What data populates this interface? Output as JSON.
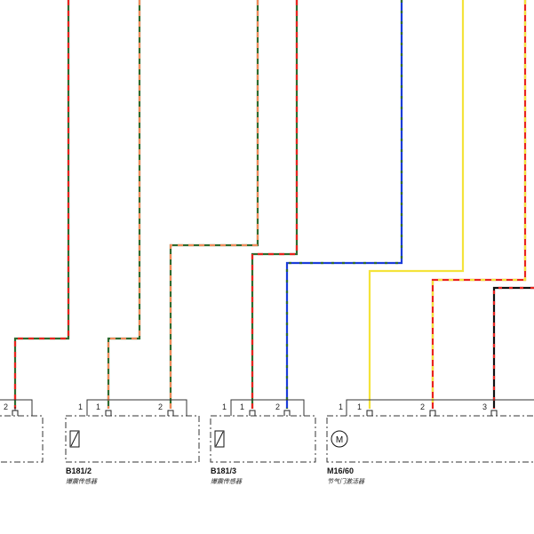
{
  "colors": {
    "green": "#2f6b2f",
    "red": "#e8231e",
    "orange": "#f08a5a",
    "blue": "#1a3cd8",
    "yellow": "#f4e33a",
    "black": "#111111",
    "frame": "#333333"
  },
  "components": [
    {
      "id": "",
      "name": "",
      "pins": [
        "2"
      ]
    },
    {
      "id": "B181/2",
      "name": "爆震传感器",
      "symbol": "knock-sensor-icon",
      "pins": [
        "1",
        "1",
        "2"
      ]
    },
    {
      "id": "B181/3",
      "name": "爆震传感器",
      "symbol": "knock-sensor-icon",
      "pins": [
        "1",
        "1",
        "2"
      ]
    },
    {
      "id": "M16/60",
      "name": "节气门激活器",
      "symbol": "motor-icon",
      "symbol_text": "M",
      "pins": [
        "1",
        "1",
        "2",
        "3"
      ]
    }
  ],
  "wires": [
    {
      "from": "connector-0-pin-2",
      "colors": [
        "green",
        "red"
      ]
    },
    {
      "from": "B181/2-pin-1",
      "colors": [
        "green",
        "orange"
      ]
    },
    {
      "from": "B181/2-pin-2",
      "colors": [
        "green",
        "orange"
      ]
    },
    {
      "from": "B181/3-pin-1",
      "colors": [
        "green",
        "red"
      ]
    },
    {
      "from": "B181/3-pin-2",
      "colors": [
        "green",
        "red"
      ]
    },
    {
      "from": "B181/3-pin-2",
      "colors": [
        "blue",
        "green"
      ]
    },
    {
      "from": "M16/60-pin-1",
      "colors": [
        "yellow"
      ]
    },
    {
      "from": "M16/60-pin-2",
      "colors": [
        "red",
        "yellow"
      ]
    },
    {
      "from": "M16/60-pin-3",
      "colors": [
        "black",
        "red"
      ]
    }
  ]
}
